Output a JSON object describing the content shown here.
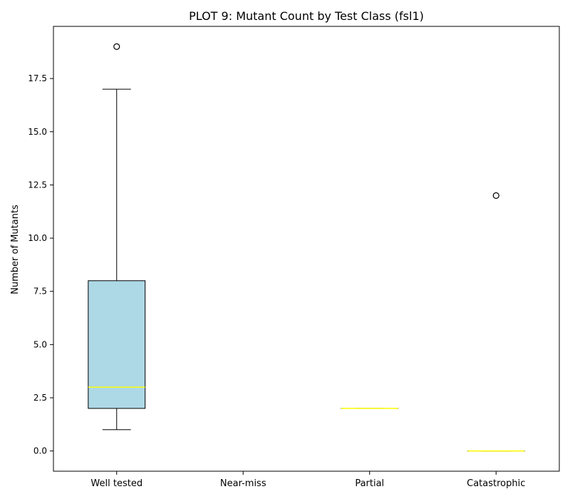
{
  "chart_data": {
    "type": "box",
    "title": "PLOT 9: Mutant Count by Test Class (fsl1)",
    "xlabel": "",
    "ylabel": "Number of Mutants",
    "ylim": [
      -0.95,
      19.95
    ],
    "yticks": [
      0.0,
      2.5,
      5.0,
      7.5,
      10.0,
      12.5,
      15.0,
      17.5
    ],
    "ytick_labels": [
      "0.0",
      "2.5",
      "5.0",
      "7.5",
      "10.0",
      "12.5",
      "15.0",
      "17.5"
    ],
    "categories": [
      "Well tested",
      "Near-miss",
      "Partial",
      "Catastrophic"
    ],
    "boxes": [
      {
        "category": "Well tested",
        "whislo": 1,
        "q1": 2,
        "med": 3,
        "q3": 8,
        "whishi": 17,
        "fliers": [
          19
        ]
      },
      {
        "category": "Near-miss",
        "empty": true
      },
      {
        "category": "Partial",
        "whislo": 2,
        "q1": 2,
        "med": 2,
        "q3": 2,
        "whishi": 2,
        "fliers": []
      },
      {
        "category": "Catastrophic",
        "whislo": 0,
        "q1": 0,
        "med": 0,
        "q3": 0,
        "whishi": 0,
        "fliers": [
          12
        ]
      }
    ],
    "colors": {
      "box_fill": "#add8e6",
      "median": "#ffff00",
      "edge": "#000000"
    }
  }
}
